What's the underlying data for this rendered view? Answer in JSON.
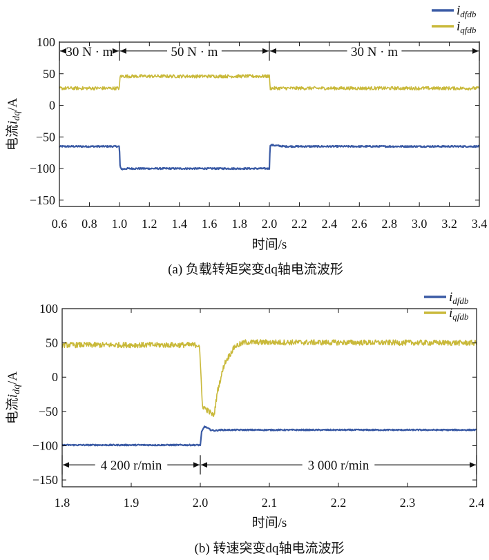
{
  "chart_data": [
    {
      "type": "line",
      "caption": "(a) 负载转矩突变dq轴电流波形",
      "xlabel": "时间/s",
      "ylabel": "电流i_dq/A",
      "ylabel_parts": {
        "prefix": "电流",
        "var": "i",
        "sub": "dq",
        "suffix": "/A"
      },
      "xlim": [
        0.6,
        3.4
      ],
      "ylim": [
        -160,
        100
      ],
      "xticks": [
        0.6,
        0.8,
        1.0,
        1.2,
        1.4,
        1.6,
        1.8,
        2.0,
        2.2,
        2.4,
        2.6,
        2.8,
        3.0,
        3.2,
        3.4
      ],
      "xtick_labels": [
        "0.6",
        "0.8",
        "1.0",
        "1.2",
        "1.4",
        "1.6",
        "1.8",
        "2.0",
        "2.2",
        "2.4",
        "2.6",
        "2.8",
        "3.0",
        "3.2",
        "3.4"
      ],
      "yticks": [
        -150,
        -100,
        -50,
        0,
        50,
        100
      ],
      "ytick_labels": [
        "−150",
        "−100",
        "−50",
        "0",
        "50",
        "100"
      ],
      "legend_position": "top-right",
      "legend": [
        {
          "var": "i",
          "sub": "dfdb",
          "color": "#3b5ba5"
        },
        {
          "var": "i",
          "sub": "qfdb",
          "color": "#c9b93a"
        }
      ],
      "series": [
        {
          "name": "i_dfdb",
          "color": "#3b5ba5",
          "noise": 1.2,
          "x": [
            0.6,
            1.0,
            1.005,
            1.02,
            1.05,
            2.0,
            2.005,
            2.02,
            2.1,
            3.4
          ],
          "y": [
            -65,
            -65,
            -99,
            -101,
            -100,
            -100,
            -63,
            -63,
            -65,
            -65
          ]
        },
        {
          "name": "i_qfdb",
          "color": "#c9b93a",
          "noise": 2.6,
          "x": [
            0.6,
            1.0,
            1.005,
            2.0,
            2.005,
            3.4
          ],
          "y": [
            27,
            27,
            46,
            46,
            27,
            27
          ]
        }
      ],
      "intervals": [
        {
          "label": "30 N · m",
          "from": 0.6,
          "to": 1.0
        },
        {
          "label": "50 N · m",
          "from": 1.0,
          "to": 2.0
        },
        {
          "label": "30 N · m",
          "from": 2.0,
          "to": 3.4
        }
      ],
      "interval_y": 86
    },
    {
      "type": "line",
      "caption": "(b) 转速突变dq轴电流波形",
      "xlabel": "时间/s",
      "ylabel": "电流i_dq/A",
      "ylabel_parts": {
        "prefix": "电流",
        "var": "i",
        "sub": "dq",
        "suffix": "/A"
      },
      "xlim": [
        1.8,
        2.4
      ],
      "ylim": [
        -160,
        100
      ],
      "xticks": [
        1.8,
        1.9,
        2.0,
        2.1,
        2.2,
        2.3,
        2.4
      ],
      "xtick_labels": [
        "1.8",
        "1.9",
        "2.0",
        "2.1",
        "2.2",
        "2.3",
        "2.4"
      ],
      "yticks": [
        -150,
        -100,
        -50,
        0,
        50,
        100
      ],
      "ytick_labels": [
        "−150",
        "−100",
        "−50",
        "0",
        "50",
        "100"
      ],
      "legend_position": "top-right",
      "legend": [
        {
          "var": "i",
          "sub": "dfdb",
          "color": "#3b5ba5"
        },
        {
          "var": "i",
          "sub": "qfdb",
          "color": "#c9b93a"
        }
      ],
      "series": [
        {
          "name": "i_dfdb",
          "color": "#3b5ba5",
          "noise": 0.9,
          "x": [
            1.8,
            2.0,
            2.002,
            2.006,
            2.01,
            2.015,
            2.02,
            2.03,
            2.4
          ],
          "y": [
            -99,
            -99,
            -80,
            -72,
            -74,
            -77,
            -78,
            -77,
            -77
          ]
        },
        {
          "name": "i_qfdb",
          "color": "#c9b93a",
          "noise": 4.0,
          "x": [
            1.8,
            1.999,
            2.0,
            2.003,
            2.01,
            2.018,
            2.02,
            2.025,
            2.035,
            2.05,
            2.065,
            2.4
          ],
          "y": [
            47,
            47,
            20,
            -42,
            -48,
            -55,
            -55,
            -20,
            20,
            45,
            51,
            50
          ]
        }
      ],
      "intervals": [
        {
          "label": "4 200 r/min",
          "from": 1.8,
          "to": 2.0
        },
        {
          "label": "3 000 r/min",
          "from": 2.0,
          "to": 2.4
        }
      ],
      "interval_y": -128
    }
  ]
}
